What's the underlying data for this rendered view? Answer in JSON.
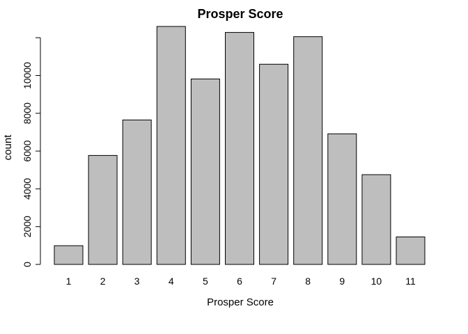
{
  "chart_data": {
    "type": "bar",
    "title": "Prosper Score",
    "xlabel": "Prosper Score",
    "ylabel": "count",
    "categories": [
      "1",
      "2",
      "3",
      "4",
      "5",
      "6",
      "7",
      "8",
      "9",
      "10",
      "11"
    ],
    "values": [
      992,
      5766,
      7647,
      12595,
      9813,
      12278,
      10597,
      12053,
      6911,
      4750,
      1456
    ],
    "yticks": [
      "0",
      "2000",
      "4000",
      "6000",
      "8000",
      "10000"
    ],
    "ylim": [
      0,
      12595
    ],
    "grid": false,
    "bar_color": "#bebebe",
    "outline_color": "#000000"
  }
}
